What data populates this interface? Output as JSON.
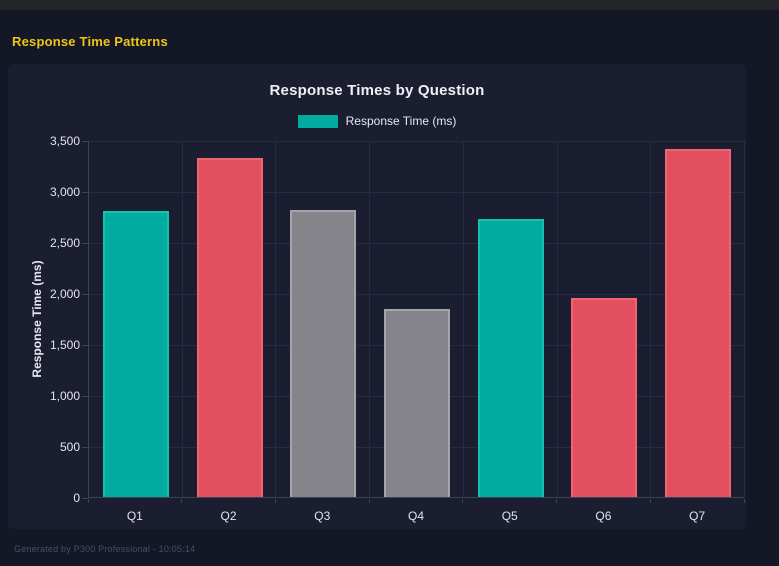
{
  "header": {
    "title": "Response Time Patterns"
  },
  "footer": {
    "text": "Generated by P300 Professional - 10:05:14"
  },
  "colors": {
    "page_bg": "#141726",
    "panel_bg": "#1b1e31",
    "top_strip": "#232526",
    "accent_yellow": "#eec614",
    "teal": "#00ab9f",
    "red": "#e25060",
    "gray": "#85848a",
    "grid": "#272c44",
    "axis": "#3c4258",
    "text": "#e6e8ee",
    "footer_text": "#454d68"
  },
  "chart_data": {
    "type": "bar",
    "title": "Response Times by Question",
    "legend": [
      {
        "label": "Response Time (ms)",
        "color": "#00ab9f"
      }
    ],
    "legend_position": "top",
    "categories": [
      "Q1",
      "Q2",
      "Q3",
      "Q4",
      "Q5",
      "Q6",
      "Q7"
    ],
    "values": [
      2800,
      3320,
      2810,
      1840,
      2730,
      1950,
      3410
    ],
    "bar_colors": [
      "#00ab9f",
      "#e25060",
      "#85848a",
      "#85848a",
      "#00ab9f",
      "#e25060",
      "#e25060"
    ],
    "bar_border_colors": [
      "#14c2b4",
      "#ef6672",
      "#a5a4ab",
      "#a5a4ab",
      "#14c2b4",
      "#ef6672",
      "#ef6672"
    ],
    "xlabel": "",
    "ylabel": "Response Time (ms)",
    "ylim": [
      0,
      3500
    ],
    "yticks": [
      {
        "value": 0,
        "label": "0"
      },
      {
        "value": 500,
        "label": "500"
      },
      {
        "value": 1000,
        "label": "1,000"
      },
      {
        "value": 1500,
        "label": "1,500"
      },
      {
        "value": 2000,
        "label": "2,000"
      },
      {
        "value": 2500,
        "label": "2,500"
      },
      {
        "value": 3000,
        "label": "3,000"
      },
      {
        "value": 3500,
        "label": "3,500"
      }
    ],
    "grid": true
  }
}
